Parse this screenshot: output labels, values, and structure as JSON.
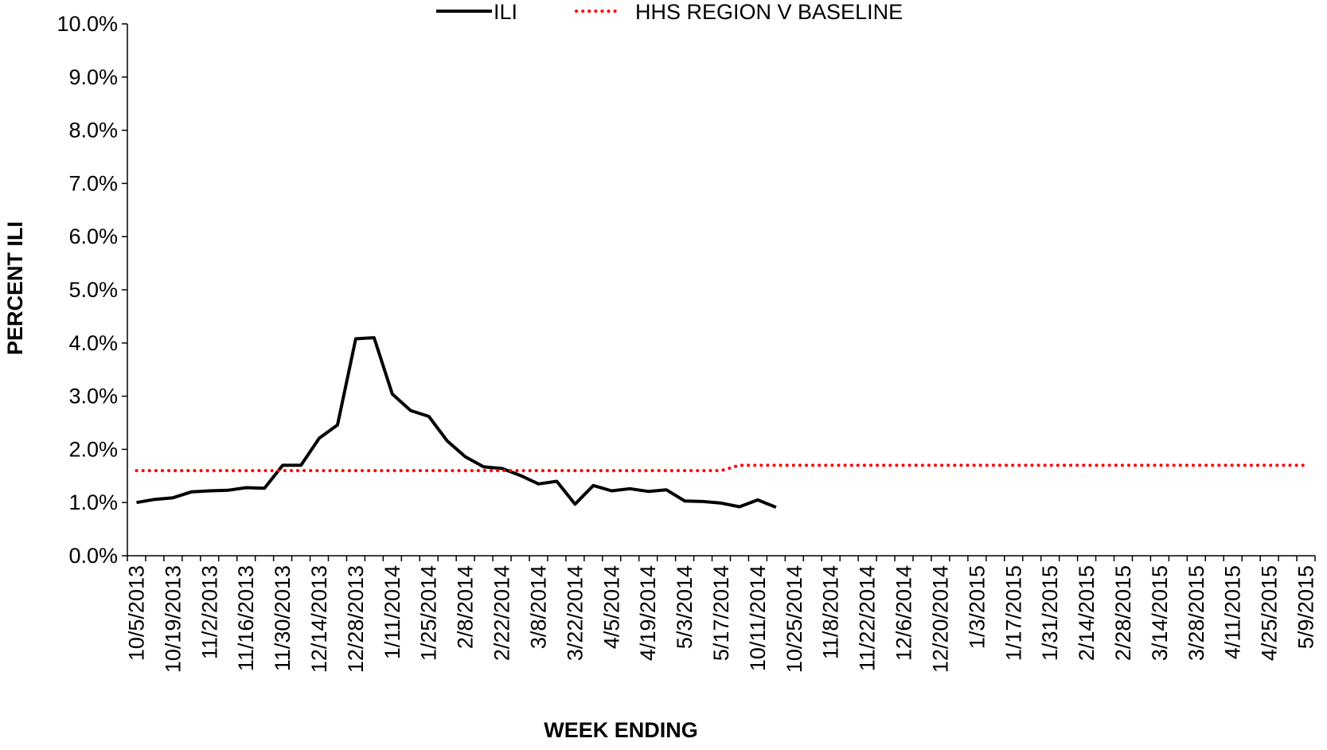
{
  "chart_data": {
    "type": "line",
    "x_label": "WEEK ENDING",
    "y_label": "PERCENT ILI",
    "categories": [
      "10/5/2013",
      null,
      "10/19/2013",
      null,
      "11/2/2013",
      null,
      "11/16/2013",
      null,
      "11/30/2013",
      null,
      "12/14/2013",
      null,
      "12/28/2013",
      null,
      "1/11/2014",
      null,
      "1/25/2014",
      null,
      "2/8/2014",
      null,
      "2/22/2014",
      null,
      "3/8/2014",
      null,
      "3/22/2014",
      null,
      "4/5/2014",
      null,
      "4/19/2014",
      null,
      "5/3/2014",
      null,
      "5/17/2014",
      null,
      "10/11/2014",
      null,
      "10/25/2014",
      null,
      "11/8/2014",
      null,
      "11/22/2014",
      null,
      "12/6/2014",
      null,
      "12/20/2014",
      null,
      "1/3/2015",
      null,
      "1/17/2015",
      null,
      "1/31/2015",
      null,
      "2/14/2015",
      null,
      "2/28/2015",
      null,
      "3/14/2015",
      null,
      "3/28/2015",
      null,
      "4/11/2015",
      null,
      "4/25/2015",
      null,
      "5/9/2015"
    ],
    "series": [
      {
        "name": "ILI",
        "color": "#000000",
        "style": "solid",
        "values": [
          1.0,
          1.06,
          1.09,
          1.2,
          1.22,
          1.23,
          1.28,
          1.27,
          1.7,
          1.7,
          2.21,
          2.46,
          4.08,
          4.1,
          3.04,
          2.73,
          2.62,
          2.16,
          1.86,
          1.67,
          1.64,
          1.51,
          1.35,
          1.4,
          0.97,
          1.32,
          1.22,
          1.26,
          1.21,
          1.24,
          1.03,
          1.02,
          0.99,
          0.92,
          1.05,
          0.91,
          null,
          null,
          null,
          null,
          null,
          null,
          null,
          null,
          null,
          null,
          null,
          null,
          null,
          null,
          null,
          null,
          null,
          null,
          null,
          null,
          null,
          null,
          null,
          null,
          null,
          null,
          null,
          null,
          null
        ]
      },
      {
        "name": "HHS REGION V BASELINE",
        "color": "#ff0000",
        "style": "dotted",
        "values": [
          1.6,
          1.6,
          1.6,
          1.6,
          1.6,
          1.6,
          1.6,
          1.6,
          1.6,
          1.6,
          1.6,
          1.6,
          1.6,
          1.6,
          1.6,
          1.6,
          1.6,
          1.6,
          1.6,
          1.6,
          1.6,
          1.6,
          1.6,
          1.6,
          1.6,
          1.6,
          1.6,
          1.6,
          1.6,
          1.6,
          1.6,
          1.6,
          1.6,
          1.7,
          1.7,
          1.7,
          1.7,
          1.7,
          1.7,
          1.7,
          1.7,
          1.7,
          1.7,
          1.7,
          1.7,
          1.7,
          1.7,
          1.7,
          1.7,
          1.7,
          1.7,
          1.7,
          1.7,
          1.7,
          1.7,
          1.7,
          1.7,
          1.7,
          1.7,
          1.7,
          1.7,
          1.7,
          1.7,
          1.7,
          1.7
        ]
      }
    ],
    "ylim": [
      0,
      10
    ],
    "yticks": [
      {
        "value": 0,
        "label": "0.0%"
      },
      {
        "value": 1,
        "label": "1.0%"
      },
      {
        "value": 2,
        "label": "2.0%"
      },
      {
        "value": 3,
        "label": "3.0%"
      },
      {
        "value": 4,
        "label": "4.0%"
      },
      {
        "value": 5,
        "label": "5.0%"
      },
      {
        "value": 6,
        "label": "6.0%"
      },
      {
        "value": 7,
        "label": "7.0%"
      },
      {
        "value": 8,
        "label": "8.0%"
      },
      {
        "value": 9,
        "label": "9.0%"
      },
      {
        "value": 10,
        "label": "10.0%"
      }
    ],
    "grid": false,
    "legend": "top"
  }
}
